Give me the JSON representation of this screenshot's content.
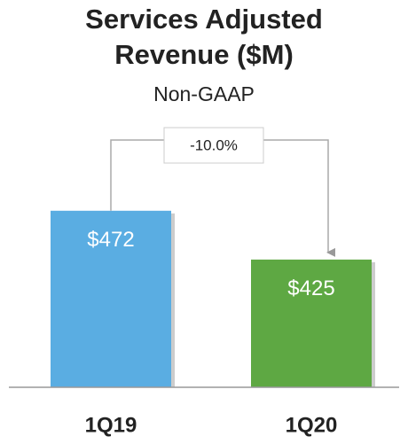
{
  "chart_data": {
    "type": "bar",
    "title": "Services Adjusted Revenue ($M)",
    "subtitle": "Non-GAAP",
    "categories": [
      "1Q19",
      "1Q20"
    ],
    "values": [
      472,
      425
    ],
    "value_labels": [
      "$472",
      "$425"
    ],
    "colors": [
      "#5aade2",
      "#5ea843"
    ],
    "ylim": [
      302,
      500
    ],
    "annotation": "-10.0%"
  }
}
